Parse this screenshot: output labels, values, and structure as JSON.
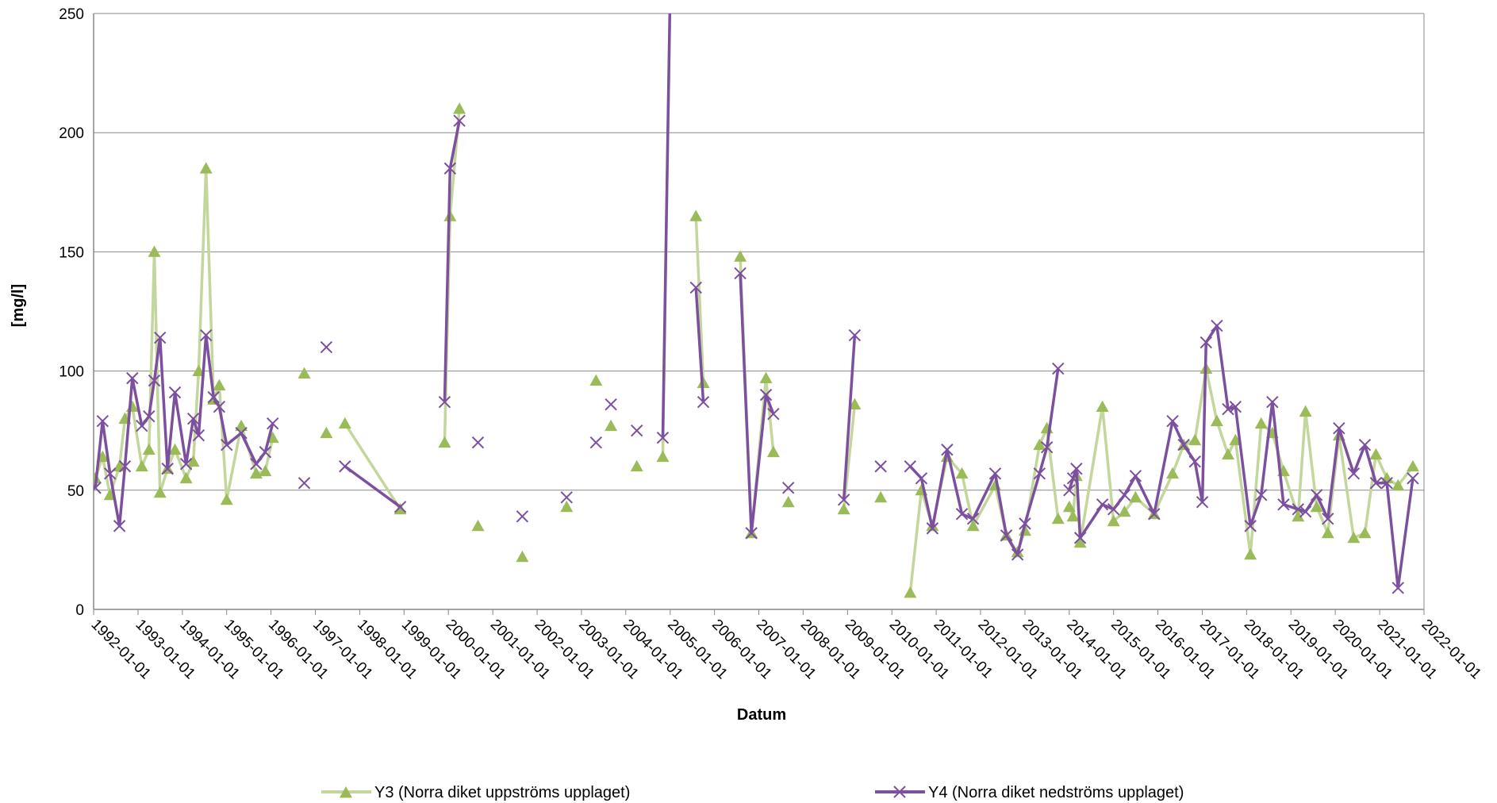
{
  "chart_data": {
    "type": "line",
    "title": "",
    "xlabel": "Datum",
    "ylabel": "[mg/l]",
    "xlim": [
      "1992-01-01",
      "2022-01-01"
    ],
    "ylim": [
      0,
      250
    ],
    "yticks": [
      "0",
      "50",
      "100",
      "150",
      "200",
      "250"
    ],
    "xticks": [
      "1992-01-01",
      "1993-01-01",
      "1994-01-01",
      "1995-01-01",
      "1996-01-01",
      "1997-01-01",
      "1998-01-01",
      "1999-01-01",
      "2000-01-01",
      "2001-01-01",
      "2002-01-01",
      "2003-01-01",
      "2004-01-01",
      "2005-01-01",
      "2006-01-01",
      "2007-01-01",
      "2008-01-01",
      "2009-01-01",
      "2010-01-01",
      "2011-01-01",
      "2012-01-01",
      "2013-01-01",
      "2014-01-01",
      "2015-01-01",
      "2016-01-01",
      "2017-01-01",
      "2018-01-01",
      "2019-01-01",
      "2020-01-01",
      "2021-01-01",
      "2022-01-01"
    ],
    "grid": "horizontal",
    "legend_position": "bottom",
    "colors": {
      "Y3": "#9bbb59",
      "Y3_line": "#c3d69b",
      "Y4": "#7c4f9f",
      "grid": "#888888"
    },
    "series": [
      {
        "name": "Y3 (Norra diket uppströms upplaget)",
        "marker": "triangle",
        "segments": [
          [
            [
              "1992-01-15",
              55
            ],
            [
              "1992-03-15",
              64
            ],
            [
              "1992-05-15",
              48
            ],
            [
              "1992-08-01",
              60
            ],
            [
              "1992-09-15",
              80
            ],
            [
              "1992-11-15",
              85
            ],
            [
              "1993-02-01",
              60
            ],
            [
              "1993-04-01",
              67
            ],
            [
              "1993-05-15",
              150
            ],
            [
              "1993-07-01",
              49
            ],
            [
              "1993-09-01",
              59
            ],
            [
              "1993-11-01",
              67
            ],
            [
              "1994-02-01",
              55
            ],
            [
              "1994-04-01",
              62
            ],
            [
              "1994-05-15",
              100
            ],
            [
              "1994-07-15",
              185
            ],
            [
              "1994-09-15",
              88
            ],
            [
              "1994-11-01",
              94
            ],
            [
              "1995-01-01",
              46
            ],
            [
              "1995-05-01",
              77
            ],
            [
              "1995-09-01",
              57
            ],
            [
              "1995-11-15",
              58
            ],
            [
              "1996-01-15",
              72
            ]
          ],
          [
            [
              "1996-10-01",
              99
            ]
          ],
          [
            [
              "1997-04-01",
              74
            ]
          ],
          [
            [
              "1997-09-01",
              78
            ],
            [
              "1998-12-01",
              42
            ]
          ],
          [
            [
              "1999-12-01",
              70
            ],
            [
              "2000-01-15",
              165
            ],
            [
              "2000-04-01",
              210
            ]
          ],
          [
            [
              "2000-09-01",
              35
            ]
          ],
          [
            [
              "2001-09-01",
              22
            ]
          ],
          [
            [
              "2002-09-01",
              43
            ]
          ],
          [
            [
              "2003-05-01",
              96
            ]
          ],
          [
            [
              "2003-09-01",
              77
            ]
          ],
          [
            [
              "2004-04-01",
              60
            ]
          ],
          [
            [
              "2004-11-01",
              64
            ],
            [
              "2005-01-01",
              260
            ]
          ],
          [
            [
              "2005-08-01",
              165
            ],
            [
              "2005-10-01",
              95
            ]
          ],
          [
            [
              "2006-08-01",
              148
            ],
            [
              "2006-11-01",
              32
            ],
            [
              "2007-03-01",
              97
            ],
            [
              "2007-05-01",
              66
            ]
          ],
          [
            [
              "2007-09-01",
              45
            ]
          ],
          [
            [
              "2008-12-01",
              42
            ],
            [
              "2009-03-01",
              86
            ]
          ],
          [
            [
              "2009-10-01",
              47
            ]
          ],
          [
            [
              "2010-06-01",
              7
            ],
            [
              "2010-09-01",
              50
            ],
            [
              "2010-12-01",
              35
            ],
            [
              "2011-04-01",
              64
            ],
            [
              "2011-08-01",
              57
            ],
            [
              "2011-11-01",
              35
            ],
            [
              "2012-05-01",
              52
            ],
            [
              "2012-08-01",
              31
            ],
            [
              "2012-11-01",
              24
            ],
            [
              "2013-01-01",
              33
            ],
            [
              "2013-05-01",
              69
            ],
            [
              "2013-07-01",
              76
            ],
            [
              "2013-10-01",
              38
            ]
          ],
          [
            [
              "2014-01-01",
              43
            ],
            [
              "2014-02-01",
              39
            ],
            [
              "2014-03-01",
              56
            ],
            [
              "2014-04-01",
              28
            ],
            [
              "2014-10-01",
              85
            ],
            [
              "2015-01-01",
              37
            ],
            [
              "2015-04-01",
              41
            ],
            [
              "2015-07-01",
              47
            ],
            [
              "2015-12-01",
              40
            ],
            [
              "2016-05-01",
              57
            ],
            [
              "2016-08-01",
              69
            ],
            [
              "2016-11-01",
              71
            ],
            [
              "2017-02-01",
              101
            ],
            [
              "2017-05-01",
              79
            ],
            [
              "2017-08-01",
              65
            ],
            [
              "2017-10-01",
              71
            ],
            [
              "2018-02-01",
              23
            ],
            [
              "2018-05-01",
              78
            ],
            [
              "2018-08-01",
              74
            ],
            [
              "2018-11-01",
              58
            ],
            [
              "2019-03-01",
              39
            ],
            [
              "2019-05-01",
              83
            ],
            [
              "2019-08-01",
              43
            ],
            [
              "2019-11-01",
              32
            ],
            [
              "2020-02-01",
              73
            ],
            [
              "2020-06-01",
              30
            ],
            [
              "2020-09-01",
              32
            ],
            [
              "2020-12-01",
              65
            ],
            [
              "2021-03-01",
              55
            ],
            [
              "2021-06-01",
              52
            ],
            [
              "2021-10-01",
              60
            ]
          ]
        ]
      },
      {
        "name": "Y4 (Norra diket nedströms upplaget)",
        "marker": "x",
        "segments": [
          [
            [
              "1992-01-15",
              51
            ],
            [
              "1992-03-15",
              79
            ],
            [
              "1992-05-15",
              57
            ],
            [
              "1992-08-01",
              35
            ],
            [
              "1992-09-15",
              60
            ],
            [
              "1992-11-15",
              97
            ],
            [
              "1993-02-01",
              77
            ],
            [
              "1993-04-01",
              81
            ],
            [
              "1993-05-15",
              96
            ],
            [
              "1993-07-01",
              114
            ],
            [
              "1993-09-01",
              59
            ],
            [
              "1993-11-01",
              91
            ],
            [
              "1994-02-01",
              61
            ],
            [
              "1994-04-01",
              80
            ],
            [
              "1994-05-15",
              73
            ],
            [
              "1994-07-15",
              115
            ],
            [
              "1994-09-15",
              89
            ],
            [
              "1994-11-01",
              85
            ],
            [
              "1995-01-01",
              69
            ],
            [
              "1995-05-01",
              74
            ],
            [
              "1995-09-01",
              61
            ],
            [
              "1995-11-15",
              66
            ],
            [
              "1996-01-15",
              78
            ]
          ],
          [
            [
              "1996-10-01",
              53
            ]
          ],
          [
            [
              "1997-04-01",
              110
            ]
          ],
          [
            [
              "1997-09-01",
              60
            ],
            [
              "1998-12-01",
              43
            ]
          ],
          [
            [
              "1999-12-01",
              87
            ],
            [
              "2000-01-15",
              185
            ],
            [
              "2000-04-01",
              205
            ]
          ],
          [
            [
              "2000-09-01",
              70
            ]
          ],
          [
            [
              "2001-09-01",
              39
            ]
          ],
          [
            [
              "2002-09-01",
              47
            ]
          ],
          [
            [
              "2003-05-01",
              70
            ]
          ],
          [
            [
              "2003-09-01",
              86
            ]
          ],
          [
            [
              "2004-04-01",
              75
            ]
          ],
          [
            [
              "2004-11-01",
              72
            ],
            [
              "2005-01-01",
              260
            ]
          ],
          [
            [
              "2005-08-01",
              135
            ],
            [
              "2005-10-01",
              87
            ]
          ],
          [
            [
              "2006-08-01",
              141
            ],
            [
              "2006-11-01",
              32
            ],
            [
              "2007-03-01",
              90
            ],
            [
              "2007-05-01",
              82
            ]
          ],
          [
            [
              "2007-09-01",
              51
            ]
          ],
          [
            [
              "2008-12-01",
              46
            ],
            [
              "2009-03-01",
              115
            ]
          ],
          [
            [
              "2009-10-01",
              60
            ]
          ],
          [
            [
              "2010-06-01",
              60
            ],
            [
              "2010-09-01",
              55
            ],
            [
              "2010-12-01",
              34
            ],
            [
              "2011-04-01",
              67
            ],
            [
              "2011-08-01",
              40
            ],
            [
              "2011-11-01",
              38
            ],
            [
              "2012-05-01",
              57
            ],
            [
              "2012-08-01",
              31
            ],
            [
              "2012-11-01",
              23
            ],
            [
              "2013-01-01",
              36
            ],
            [
              "2013-05-01",
              57
            ],
            [
              "2013-07-01",
              68
            ],
            [
              "2013-10-01",
              101
            ]
          ],
          [
            [
              "2014-01-01",
              50
            ],
            [
              "2014-02-01",
              55
            ],
            [
              "2014-03-01",
              59
            ],
            [
              "2014-04-01",
              30
            ],
            [
              "2014-10-01",
              44
            ],
            [
              "2015-01-01",
              42
            ],
            [
              "2015-04-01",
              48
            ],
            [
              "2015-07-01",
              56
            ],
            [
              "2015-12-01",
              40
            ],
            [
              "2016-05-01",
              79
            ],
            [
              "2016-08-01",
              69
            ],
            [
              "2016-11-01",
              62
            ],
            [
              "2017-01-01",
              45
            ],
            [
              "2017-02-01",
              112
            ],
            [
              "2017-05-01",
              119
            ],
            [
              "2017-08-01",
              84
            ],
            [
              "2017-10-01",
              85
            ],
            [
              "2018-02-01",
              35
            ],
            [
              "2018-05-01",
              48
            ],
            [
              "2018-08-01",
              87
            ],
            [
              "2018-11-01",
              44
            ],
            [
              "2019-03-01",
              42
            ],
            [
              "2019-05-01",
              41
            ],
            [
              "2019-08-01",
              48
            ],
            [
              "2019-11-01",
              38
            ],
            [
              "2020-02-01",
              76
            ],
            [
              "2020-06-01",
              57
            ],
            [
              "2020-09-01",
              69
            ],
            [
              "2020-12-01",
              53
            ],
            [
              "2021-03-01",
              53
            ],
            [
              "2021-06-01",
              9
            ],
            [
              "2021-10-01",
              55
            ]
          ]
        ]
      }
    ]
  }
}
